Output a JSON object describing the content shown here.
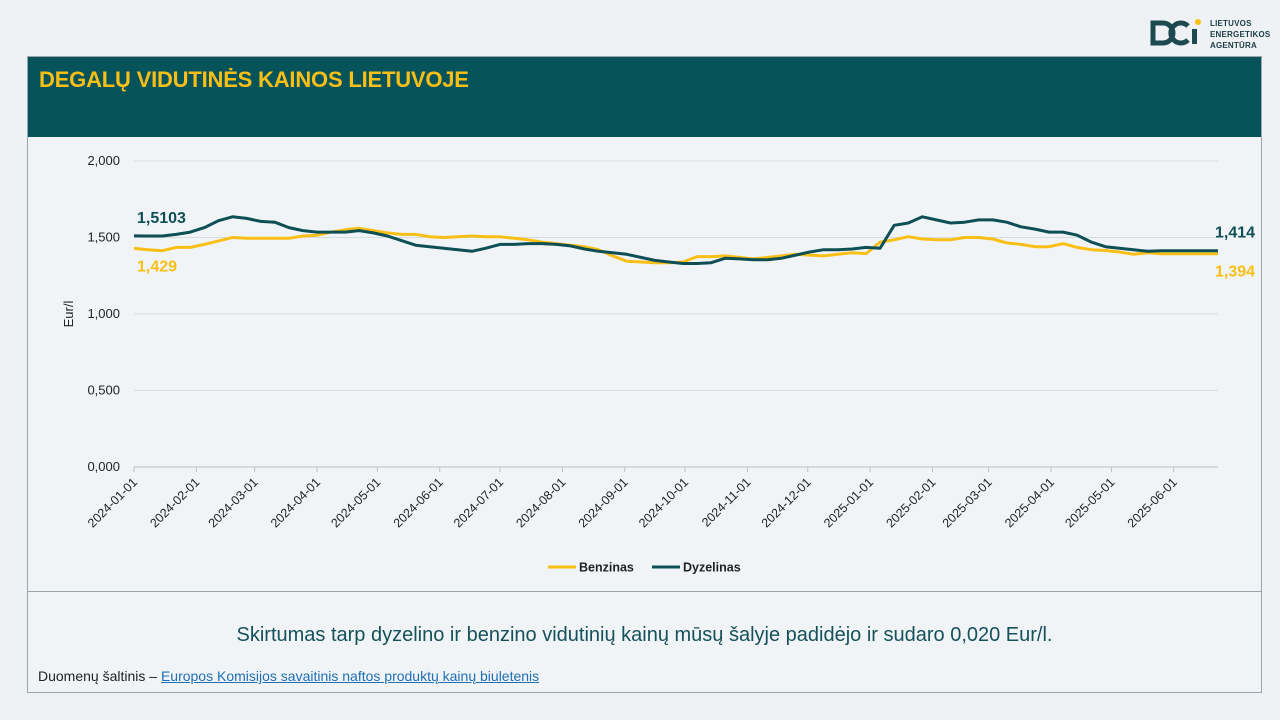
{
  "brand": {
    "line1": "LIETUVOS",
    "line2": "ENERGETIKOS",
    "line3": "AGENTŪRA",
    "logo_icon": "lea-logo-icon"
  },
  "colors": {
    "header_bg": "#07535a",
    "title": "#f9bf16",
    "benzinas": "#f9bf16",
    "dyzelinas": "#0d4f55"
  },
  "summary": "Skirtumas tarp dyzelino ir benzino vidutinių kainų mūsų šalyje padidėjo ir sudaro 0,020 Eur/l.",
  "source": {
    "prefix": "Duomenų šaltinis – ",
    "link_text": "Europos Komisijos savaitinis naftos produktų kainų biuletenis"
  },
  "chart_data": {
    "type": "line",
    "title": "DEGALŲ VIDUTINĖS KAINOS LIETUVOJE",
    "xlabel": "",
    "ylabel": "Eur/l",
    "ylim": [
      0,
      2
    ],
    "y_ticks": [
      "0,000",
      "0,500",
      "1,000",
      "1,500",
      "2,000"
    ],
    "x_start": "2024-01-01",
    "x_end": "2025-06-23",
    "x_ticks": [
      "2024-01-01",
      "2024-02-01",
      "2024-03-01",
      "2024-04-01",
      "2024-05-01",
      "2024-06-01",
      "2024-07-01",
      "2024-08-01",
      "2024-09-01",
      "2024-10-01",
      "2024-11-01",
      "2024-12-01",
      "2025-01-01",
      "2025-02-01",
      "2025-03-01",
      "2025-04-01",
      "2025-05-01",
      "2025-06-01"
    ],
    "grid": "horizontal",
    "legend_position": "bottom",
    "x": [
      "2024-01-01",
      "2024-01-08",
      "2024-01-15",
      "2024-01-22",
      "2024-01-29",
      "2024-02-05",
      "2024-02-12",
      "2024-02-19",
      "2024-02-26",
      "2024-03-04",
      "2024-03-11",
      "2024-03-18",
      "2024-03-25",
      "2024-04-01",
      "2024-04-08",
      "2024-04-15",
      "2024-04-22",
      "2024-04-29",
      "2024-05-06",
      "2024-05-13",
      "2024-05-20",
      "2024-05-27",
      "2024-06-03",
      "2024-06-10",
      "2024-06-17",
      "2024-06-24",
      "2024-07-01",
      "2024-07-08",
      "2024-07-15",
      "2024-07-22",
      "2024-07-29",
      "2024-08-05",
      "2024-08-12",
      "2024-08-19",
      "2024-08-26",
      "2024-09-02",
      "2024-09-09",
      "2024-09-16",
      "2024-09-23",
      "2024-09-30",
      "2024-10-07",
      "2024-10-14",
      "2024-10-21",
      "2024-10-28",
      "2024-11-04",
      "2024-11-11",
      "2024-11-18",
      "2024-11-25",
      "2024-12-02",
      "2024-12-09",
      "2024-12-16",
      "2024-12-23",
      "2024-12-30",
      "2025-01-06",
      "2025-01-13",
      "2025-01-20",
      "2025-01-27",
      "2025-02-03",
      "2025-02-10",
      "2025-02-17",
      "2025-02-24",
      "2025-03-03",
      "2025-03-10",
      "2025-03-17",
      "2025-03-24",
      "2025-03-31",
      "2025-04-07",
      "2025-04-14",
      "2025-04-21",
      "2025-04-28",
      "2025-05-05",
      "2025-05-12",
      "2025-05-19",
      "2025-05-26",
      "2025-06-02",
      "2025-06-09",
      "2025-06-16",
      "2025-06-23"
    ],
    "series": [
      {
        "name": "Benzinas",
        "color": "#f9bf16",
        "values": [
          1.429,
          1.42,
          1.414,
          1.435,
          1.435,
          1.455,
          1.478,
          1.5,
          1.495,
          1.495,
          1.495,
          1.495,
          1.51,
          1.515,
          1.535,
          1.55,
          1.56,
          1.545,
          1.53,
          1.52,
          1.52,
          1.505,
          1.5,
          1.505,
          1.51,
          1.505,
          1.505,
          1.495,
          1.485,
          1.47,
          1.46,
          1.45,
          1.44,
          1.42,
          1.38,
          1.345,
          1.34,
          1.335,
          1.335,
          1.34,
          1.375,
          1.375,
          1.38,
          1.37,
          1.36,
          1.37,
          1.38,
          1.39,
          1.385,
          1.38,
          1.39,
          1.4,
          1.395,
          1.47,
          1.485,
          1.505,
          1.49,
          1.485,
          1.485,
          1.5,
          1.5,
          1.49,
          1.465,
          1.455,
          1.44,
          1.44,
          1.46,
          1.435,
          1.42,
          1.415,
          1.405,
          1.39,
          1.4,
          1.394,
          1.394,
          1.394,
          1.394,
          1.394
        ]
      },
      {
        "name": "Dyzelinas",
        "color": "#0d4f55",
        "values": [
          1.5103,
          1.51,
          1.51,
          1.52,
          1.535,
          1.565,
          1.61,
          1.635,
          1.625,
          1.605,
          1.6,
          1.565,
          1.545,
          1.535,
          1.535,
          1.535,
          1.545,
          1.53,
          1.51,
          1.48,
          1.45,
          1.44,
          1.43,
          1.42,
          1.41,
          1.43,
          1.455,
          1.455,
          1.46,
          1.46,
          1.455,
          1.445,
          1.425,
          1.41,
          1.4,
          1.39,
          1.37,
          1.35,
          1.34,
          1.33,
          1.33,
          1.335,
          1.365,
          1.36,
          1.355,
          1.355,
          1.365,
          1.385,
          1.405,
          1.42,
          1.42,
          1.425,
          1.435,
          1.43,
          1.58,
          1.595,
          1.635,
          1.615,
          1.595,
          1.6,
          1.615,
          1.615,
          1.6,
          1.57,
          1.555,
          1.535,
          1.535,
          1.515,
          1.47,
          1.44,
          1.43,
          1.42,
          1.41,
          1.414,
          1.414,
          1.414,
          1.414,
          1.414
        ]
      }
    ],
    "annotations": [
      {
        "text": "1,5103",
        "series": "Dyzelinas",
        "position": "start"
      },
      {
        "text": "1,429",
        "series": "Benzinas",
        "position": "start"
      },
      {
        "text": "1,414",
        "series": "Dyzelinas",
        "position": "end"
      },
      {
        "text": "1,394",
        "series": "Benzinas",
        "position": "end"
      }
    ]
  }
}
